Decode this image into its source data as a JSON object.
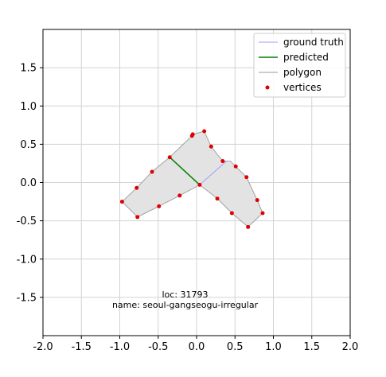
{
  "chart_data": {
    "type": "scatter",
    "title": "",
    "xlabel": "",
    "ylabel": "",
    "xlim": [
      -2.0,
      2.0
    ],
    "ylim": [
      -2.0,
      2.0
    ],
    "grid": true,
    "legend_position": "top-right",
    "x_ticks": [
      "-2.0",
      "-1.5",
      "-1.0",
      "-0.5",
      "0.0",
      "0.5",
      "1.0",
      "1.5",
      "2.0"
    ],
    "y_ticks": [
      "-1.5",
      "-1.0",
      "-0.5",
      "0.0",
      "0.5",
      "1.0",
      "1.5"
    ],
    "x_tick_values": [
      -2.0,
      -1.5,
      -1.0,
      -0.5,
      0.0,
      0.5,
      1.0,
      1.5,
      2.0
    ],
    "y_tick_values": [
      -1.5,
      -1.0,
      -0.5,
      0.0,
      0.5,
      1.0,
      1.5
    ],
    "polygon": {
      "name": "polygon",
      "fill": "#e3e3e3",
      "stroke": "#999999",
      "points": [
        [
          0.1,
          0.67
        ],
        [
          0.19,
          0.47
        ],
        [
          0.34,
          0.28
        ],
        [
          0.44,
          0.28
        ],
        [
          0.51,
          0.21
        ],
        [
          0.65,
          0.07
        ],
        [
          0.79,
          -0.23
        ],
        [
          0.86,
          -0.4
        ],
        [
          0.67,
          -0.58
        ],
        [
          0.46,
          -0.4
        ],
        [
          0.27,
          -0.21
        ],
        [
          0.04,
          -0.03
        ],
        [
          -0.22,
          -0.17
        ],
        [
          -0.49,
          -0.31
        ],
        [
          -0.77,
          -0.45
        ],
        [
          -0.97,
          -0.25
        ],
        [
          -0.78,
          -0.07
        ],
        [
          -0.58,
          0.14
        ],
        [
          -0.35,
          0.33
        ],
        [
          -0.06,
          0.61
        ],
        [
          -0.05,
          0.63
        ]
      ]
    },
    "vertices": {
      "name": "vertices",
      "color": "#e00000",
      "points": [
        [
          0.1,
          0.67
        ],
        [
          -0.06,
          0.61
        ],
        [
          -0.05,
          0.63
        ],
        [
          0.19,
          0.47
        ],
        [
          0.34,
          0.28
        ],
        [
          0.51,
          0.21
        ],
        [
          0.65,
          0.07
        ],
        [
          0.79,
          -0.23
        ],
        [
          0.86,
          -0.4
        ],
        [
          0.67,
          -0.58
        ],
        [
          0.46,
          -0.4
        ],
        [
          0.27,
          -0.21
        ],
        [
          0.04,
          -0.03
        ],
        [
          -0.22,
          -0.17
        ],
        [
          -0.49,
          -0.31
        ],
        [
          -0.77,
          -0.45
        ],
        [
          -0.97,
          -0.25
        ],
        [
          -0.78,
          -0.07
        ],
        [
          -0.58,
          0.14
        ],
        [
          -0.35,
          0.33
        ]
      ]
    },
    "ground_truth": {
      "name": "ground truth",
      "color": "#9d9dff",
      "points": [
        [
          0.04,
          -0.03
        ],
        [
          0.39,
          0.28
        ]
      ]
    },
    "predicted": {
      "name": "predicted",
      "color": "#008000",
      "points": [
        [
          -0.35,
          0.33
        ],
        [
          0.04,
          -0.03
        ]
      ]
    },
    "annotation": {
      "line1": "loc: 31793",
      "line2": "name: seoul-gangseogu-irregular",
      "anchor": [
        -0.15,
        -1.52
      ]
    }
  }
}
